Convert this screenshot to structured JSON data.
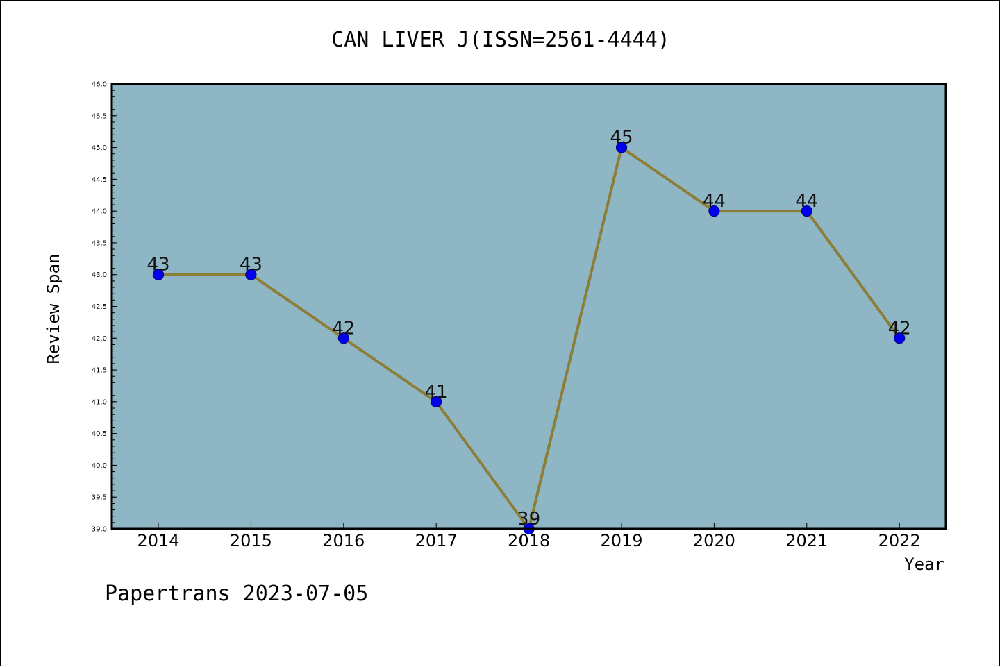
{
  "footer": "Papertrans 2023-07-05",
  "colors": {
    "plot_bg": "#8fb6c4",
    "line": "#8c7d37",
    "marker": "#0000ee",
    "marker_edge": "#00008b"
  },
  "chart_data": {
    "type": "line",
    "title": "CAN LIVER J(ISSN=2561-4444)",
    "xlabel": "Year",
    "ylabel": "Review Span",
    "x": [
      "2014",
      "2015",
      "2016",
      "2017",
      "2018",
      "2019",
      "2020",
      "2021",
      "2022"
    ],
    "values": [
      43,
      43,
      42,
      41,
      39,
      45,
      44,
      44,
      42
    ],
    "data_labels": [
      "43",
      "43",
      "42",
      "41",
      "39",
      "45",
      "44",
      "44",
      "42"
    ],
    "ylim": [
      39.0,
      46.0
    ],
    "yticks": [
      "39.0",
      "39.5",
      "40.0",
      "40.5",
      "41.0",
      "41.5",
      "42.0",
      "42.5",
      "43.0",
      "43.5",
      "44.0",
      "44.5",
      "45.0",
      "45.5",
      "46.0"
    ],
    "grid": false,
    "legend": "none"
  }
}
